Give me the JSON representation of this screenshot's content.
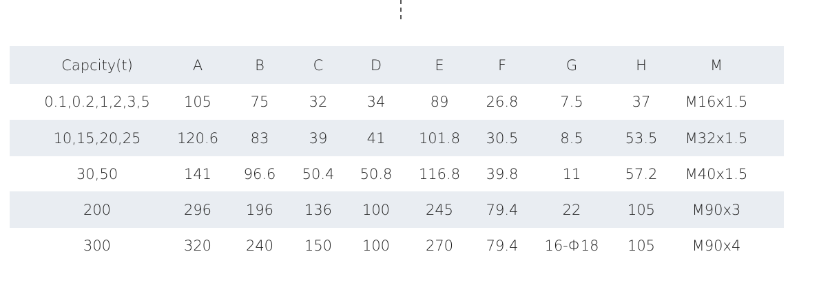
{
  "table": {
    "header": [
      "Capcity(t)",
      "A",
      "B",
      "C",
      "D",
      "E",
      "F",
      "G",
      "H",
      "M"
    ],
    "rows": [
      [
        "0.1,0.2,1,2,3,5",
        "105",
        "75",
        "32",
        "34",
        "89",
        "26.8",
        "7.5",
        "37",
        "M16x1.5"
      ],
      [
        "10,15,20,25",
        "120.6",
        "83",
        "39",
        "41",
        "101.8",
        "30.5",
        "8.5",
        "53.5",
        "M32x1.5"
      ],
      [
        "30,50",
        "141",
        "96.6",
        "50.4",
        "50.8",
        "116.8",
        "39.8",
        "11",
        "57.2",
        "M40x1.5"
      ],
      [
        "200",
        "296",
        "196",
        "136",
        "100",
        "245",
        "79.4",
        "22",
        "105",
        "M90x3"
      ],
      [
        "300",
        "320",
        "240",
        "150",
        "100",
        "270",
        "79.4",
        "16-Φ18",
        "105",
        "M90x4"
      ]
    ]
  }
}
